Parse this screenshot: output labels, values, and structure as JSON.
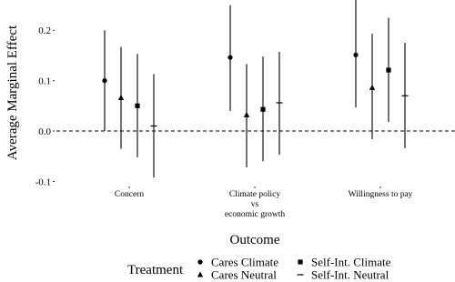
{
  "chart_data": {
    "type": "pointrange",
    "y_label": "Average Marginal Effect",
    "x_label": "Outcome",
    "legend_title": "Treatment",
    "categories": [
      [
        "Concern"
      ],
      [
        "Climate policy",
        "vs",
        "economic growth"
      ],
      [
        "Willingness to pay"
      ]
    ],
    "ylim": [
      -0.11,
      0.26
    ],
    "yticks": [
      -0.1,
      {
        "value": 0,
        "label": "0.0"
      },
      0.1,
      0.2
    ],
    "reference_line": 0,
    "series": [
      {
        "name": "Cares Climate",
        "marker": "circle",
        "color": "#000000",
        "values": [
          0.1,
          0.146,
          0.151
        ],
        "lower": [
          0.0,
          0.04,
          0.047
        ],
        "upper": [
          0.2,
          0.25,
          0.26
        ]
      },
      {
        "name": "Cares Neutral",
        "marker": "triangle",
        "color": "#000000",
        "values": [
          0.066,
          0.032,
          0.086
        ],
        "lower": [
          -0.035,
          -0.072,
          -0.016
        ],
        "upper": [
          0.167,
          0.133,
          0.193
        ]
      },
      {
        "name": "Self-Int. Climate",
        "marker": "square",
        "color": "#000000",
        "values": [
          0.05,
          0.043,
          0.121
        ],
        "lower": [
          -0.052,
          -0.06,
          0.018
        ],
        "upper": [
          0.153,
          0.148,
          0.225
        ]
      },
      {
        "name": "Self-Int. Neutral",
        "marker": "plus",
        "color": "#000000",
        "values": [
          0.01,
          0.056,
          0.07
        ],
        "lower": [
          -0.092,
          -0.047,
          -0.034
        ],
        "upper": [
          0.113,
          0.157,
          0.175
        ]
      }
    ]
  }
}
